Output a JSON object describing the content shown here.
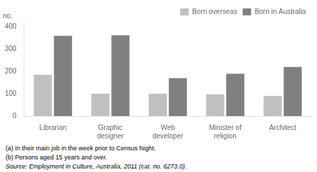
{
  "chart_data": {
    "type": "bar",
    "categories": [
      "Librarian",
      "Graphic\ndesigner",
      "Web\ndeveloper",
      "Minister of\nreligion",
      "Architect"
    ],
    "series": [
      {
        "name": "Born overseas",
        "color": "#c0c0c0",
        "values": [
          185,
          100,
          100,
          97,
          90
        ]
      },
      {
        "name": "Born in Australia",
        "color": "#808080",
        "values": [
          360,
          362,
          170,
          190,
          220
        ]
      }
    ],
    "y_label": "no.",
    "ylim": [
      0,
      420
    ],
    "yticks": [
      0,
      100,
      200,
      300,
      400
    ],
    "grid": false,
    "legend": "upper right",
    "annotations": [
      "(a) In their main job in the week prior to Census Night.",
      "(b) Persons aged 15 years and over.",
      "Source: Employment in Culture, Australia, 2011 (cat. no. 6273.0)."
    ]
  }
}
